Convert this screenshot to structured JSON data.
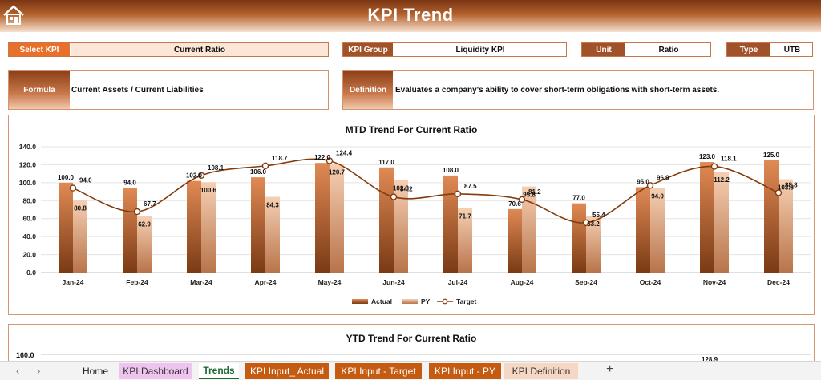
{
  "header": {
    "title": "KPI Trend"
  },
  "selectors": {
    "select_kpi": {
      "label": "Select KPI",
      "value": "Current Ratio"
    },
    "kpi_group": {
      "label": "KPI Group",
      "value": "Liquidity KPI"
    },
    "unit": {
      "label": "Unit",
      "value": "Ratio"
    },
    "type": {
      "label": "Type",
      "value": "UTB"
    }
  },
  "formula": {
    "label": "Formula",
    "value": "Current Assets / Current Liabilities"
  },
  "definition": {
    "label": "Definition",
    "value": "Evaluates a company's ability to cover short-term obligations with short-term assets."
  },
  "colors": {
    "accent": "#c55a11",
    "actual": "#d98a5c",
    "py": "#f2c6a8",
    "target": "#843c0c",
    "border": "#d89670"
  },
  "mtd_chart": {
    "title": "MTD Trend For Current Ratio",
    "legend": [
      "Actual",
      "PY",
      "Target"
    ],
    "y_ticks": [
      "140.0",
      "120.0",
      "100.0",
      "80.0",
      "60.0",
      "40.0",
      "20.0",
      "0.0"
    ],
    "actual_labels": [
      "100.0",
      "94.0",
      "102.0",
      "106.0",
      "122.0",
      "117.0",
      "108.0",
      "70.6",
      "77.0",
      "95.0",
      "123.0",
      "125.0"
    ],
    "py_labels": [
      "80.8",
      "62.9",
      "100.6",
      "84.3",
      "120.7",
      "102.8",
      "71.7",
      "95.8",
      "63.2",
      "94.0",
      "112.2",
      "103.8"
    ],
    "target_labels": [
      "94.0",
      "67.7",
      "108.1",
      "118.7",
      "124.4",
      "84.2",
      "87.5",
      "81.2",
      "55.4",
      "96.9",
      "118.1",
      "88.8"
    ]
  },
  "chart_data": {
    "type": "bar",
    "title": "MTD Trend For Current Ratio",
    "xlabel": "",
    "ylabel": "",
    "ylim": [
      0,
      140
    ],
    "grid": true,
    "legend_position": "bottom",
    "categories": [
      "Jan-24",
      "Feb-24",
      "Mar-24",
      "Apr-24",
      "May-24",
      "Jun-24",
      "Jul-24",
      "Aug-24",
      "Sep-24",
      "Oct-24",
      "Nov-24",
      "Dec-24"
    ],
    "series": [
      {
        "name": "Actual",
        "type": "bar",
        "values": [
          100.0,
          94.0,
          102.0,
          106.0,
          122.0,
          117.0,
          108.0,
          70.6,
          77.0,
          95.0,
          123.0,
          125.0
        ]
      },
      {
        "name": "PY",
        "type": "bar",
        "values": [
          80.8,
          62.9,
          100.6,
          84.3,
          120.7,
          102.8,
          71.7,
          95.8,
          63.2,
          94.0,
          112.2,
          103.8
        ]
      },
      {
        "name": "Target",
        "type": "line",
        "values": [
          94.0,
          67.7,
          108.1,
          118.7,
          124.4,
          84.2,
          87.5,
          81.2,
          55.4,
          96.9,
          118.1,
          88.8
        ]
      }
    ]
  },
  "ytd_chart": {
    "title": "YTD Trend For Current Ratio",
    "y_top_tick": "160.0",
    "peek_label": "128.9"
  },
  "tabs": {
    "home": "Home",
    "kpi_dashboard": "KPI Dashboard",
    "trends": "Trends",
    "kpi_input_actual": "KPI Input_ Actual",
    "kpi_input_target": "KPI Input - Target",
    "kpi_input_py": "KPI Input - PY",
    "kpi_definition": "KPI Definition",
    "add": "+"
  }
}
